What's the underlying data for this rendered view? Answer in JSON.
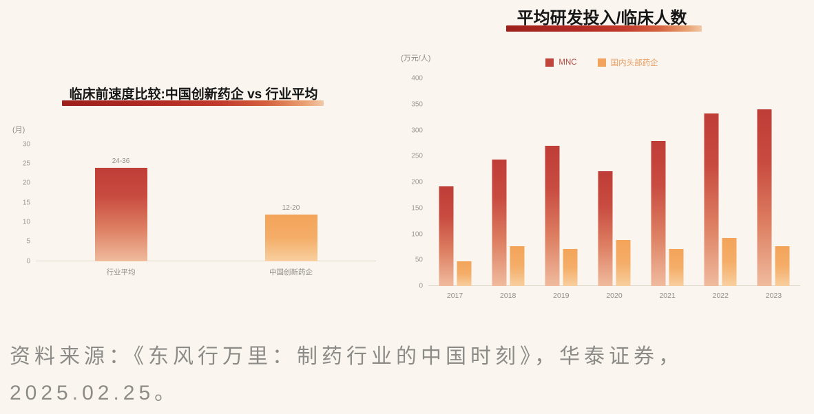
{
  "colors": {
    "background": "#faf6ef",
    "mnc_red": "#c0453c",
    "domestic_orange": "#f2a45c",
    "title_underline_start": "#9c201c",
    "title_underline_end": "#f2c8a6",
    "axis_text": "#9b9891",
    "source_text": "#8d8b88"
  },
  "source": {
    "line1": "资料来源：《东风行万里：制药行业的中国时刻》，华泰证券，",
    "line2": "2025.02.25。"
  },
  "chart_data": [
    {
      "type": "bar",
      "title": "临床前速度比较:中国创新药企 vs 行业平均",
      "ylabel": "(月)",
      "xlabel": "",
      "ylim": [
        0,
        30
      ],
      "yticks": [
        0,
        5,
        10,
        15,
        20,
        25,
        30
      ],
      "categories": [
        "行业平均",
        "中国创新药企"
      ],
      "values": [
        24,
        12
      ],
      "bar_labels": [
        "24-36",
        "12-20"
      ],
      "bar_colors": [
        "red",
        "orange"
      ],
      "grid": false,
      "legend": false
    },
    {
      "type": "bar",
      "title": "平均研发投入/临床人数",
      "ylabel": "(万元/人)",
      "xlabel": "",
      "ylim": [
        0,
        400
      ],
      "yticks": [
        0,
        50,
        100,
        150,
        200,
        250,
        300,
        350,
        400
      ],
      "categories": [
        "2017",
        "2018",
        "2019",
        "2020",
        "2021",
        "2022",
        "2023"
      ],
      "series": [
        {
          "name": "MNC",
          "color": "red",
          "values": [
            192,
            244,
            270,
            221,
            279,
            333,
            341
          ]
        },
        {
          "name": "国内头部药企",
          "color": "orange",
          "values": [
            48,
            77,
            71,
            89,
            71,
            93,
            77
          ]
        }
      ],
      "grid": false,
      "legend_position": "top"
    }
  ]
}
